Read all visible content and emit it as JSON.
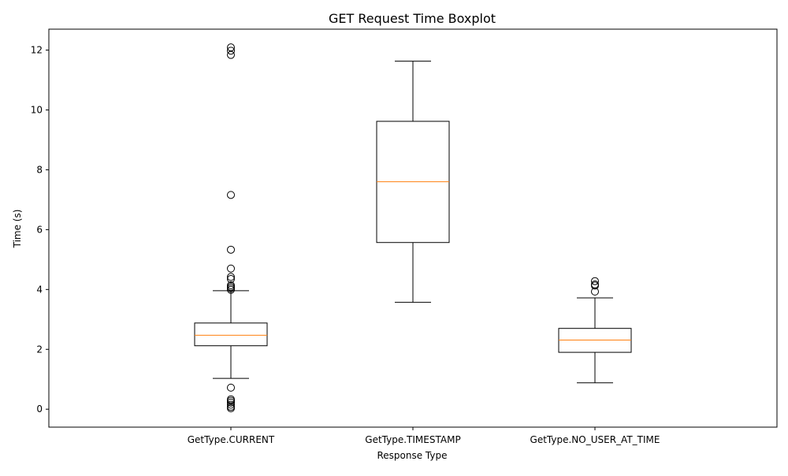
{
  "chart_data": {
    "type": "box",
    "title": "GET Request Time Boxplot",
    "xlabel": "Response Type",
    "ylabel": "Time (s)",
    "ylim": [
      -0.6,
      12.7
    ],
    "yticks": [
      0,
      2,
      4,
      6,
      8,
      10,
      12
    ],
    "grid": false,
    "colors": {
      "box": "#000000",
      "median": "#ff7f0e",
      "flier": "#000000",
      "background": "#ffffff"
    },
    "categories": [
      "GetType.CURRENT",
      "GetType.TIMESTAMP",
      "GetType.NO_USER_AT_TIME"
    ],
    "boxes": [
      {
        "category": "GetType.CURRENT",
        "whisker_low": 1.03,
        "q1": 2.12,
        "median": 2.47,
        "q3": 2.88,
        "whisker_high": 3.96,
        "outliers": [
          0.03,
          0.08,
          0.15,
          0.22,
          0.28,
          0.33,
          0.72,
          3.99,
          4.04,
          4.09,
          4.14,
          4.35,
          4.42,
          4.7,
          5.33,
          7.16,
          11.84,
          11.98,
          12.09
        ]
      },
      {
        "category": "GetType.TIMESTAMP",
        "whisker_low": 3.57,
        "q1": 5.57,
        "median": 7.6,
        "q3": 9.62,
        "whisker_high": 11.63,
        "outliers": []
      },
      {
        "category": "GetType.NO_USER_AT_TIME",
        "whisker_low": 0.88,
        "q1": 1.9,
        "median": 2.31,
        "q3": 2.7,
        "whisker_high": 3.72,
        "outliers": [
          3.93,
          4.13,
          4.17,
          4.28
        ]
      }
    ]
  }
}
